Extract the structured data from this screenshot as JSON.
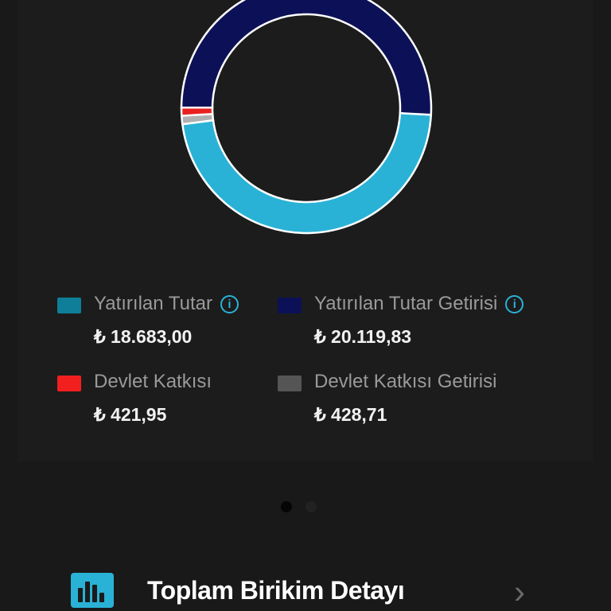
{
  "chart_data": {
    "type": "pie",
    "variant": "donut",
    "categories": [
      "Yatırılan Tutar",
      "Devlet Katkısı Getirisi",
      "Devlet Katkısı",
      "Yatırılan Tutar Getirisi"
    ],
    "values": [
      18683.0,
      428.71,
      421.95,
      20119.83
    ],
    "colors": [
      "#29b2d6",
      "#b0b0b0",
      "#e8201f",
      "#0c1157"
    ]
  },
  "legend": [
    {
      "label": "Yatırılan Tutar",
      "value": "₺ 18.683,00",
      "color": "#0e7e99",
      "info": true
    },
    {
      "label": "Yatırılan Tutar Getirisi",
      "value": "₺ 20.119,83",
      "color": "#0c1157",
      "info": true
    },
    {
      "label": "Devlet Katkısı",
      "value": "₺ 421,95",
      "color": "#f21f1f",
      "info": false
    },
    {
      "label": "Devlet Katkısı Getirisi",
      "value": "₺ 428,71",
      "color": "#555555",
      "info": false
    }
  ],
  "info_icon": "i",
  "pager": {
    "pages": 2,
    "active": 1
  },
  "detail_row": {
    "title": "Toplam Birikim Detayı",
    "icon": "bar-chart-icon",
    "chevron": "›"
  }
}
